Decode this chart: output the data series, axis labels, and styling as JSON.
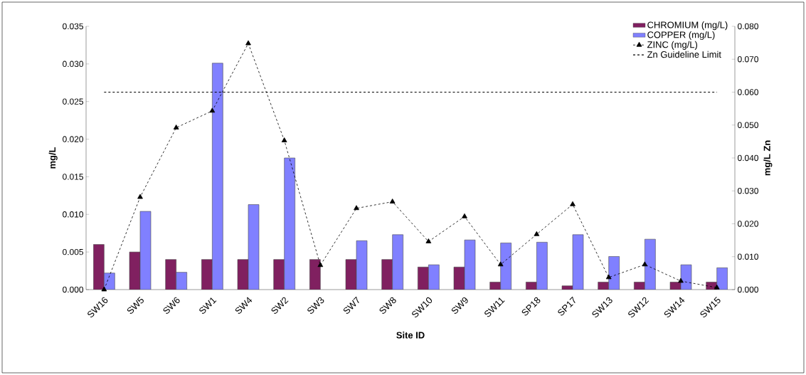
{
  "chart_data": {
    "type": "bar",
    "xlabel": "Site ID",
    "ylabel": "mg/L",
    "y2label": "mg/L Zn",
    "categories": [
      "SW16",
      "SW5",
      "SW6",
      "SW1",
      "SW4",
      "SW2",
      "SW3",
      "SW7",
      "SW8",
      "SW10",
      "SW9",
      "SW11",
      "SP18",
      "SP17",
      "SW13",
      "SW12",
      "SW14",
      "SW15"
    ],
    "series": [
      {
        "name": "CHROMIUM (mg/L)",
        "color": "#802060",
        "values": [
          0.006,
          0.005,
          0.004,
          0.004,
          0.004,
          0.004,
          0.004,
          0.004,
          0.004,
          0.003,
          0.003,
          0.001,
          0.001,
          0.0005,
          0.001,
          0.001,
          0.001,
          0.001
        ]
      },
      {
        "name": "COPPER (mg/L)",
        "color": "#8080ff",
        "values": [
          0.0022,
          0.0104,
          0.0023,
          0.0301,
          0.0113,
          0.0175,
          null,
          0.0065,
          0.0073,
          0.0033,
          0.0066,
          0.0062,
          0.0063,
          0.0073,
          0.0044,
          0.0067,
          0.0033,
          0.0029
        ]
      },
      {
        "name": "ZINC (mg/L)",
        "type": "line",
        "axis": "y2",
        "color": "#000000",
        "marker": "triangle",
        "line_style": "dashed",
        "values": [
          0.0,
          0.0281,
          0.0492,
          0.0543,
          0.0748,
          0.0453,
          0.0074,
          0.0247,
          0.0267,
          0.0146,
          0.0222,
          0.0076,
          0.0168,
          0.0259,
          0.0037,
          0.0076,
          0.0026,
          0.0006
        ]
      }
    ],
    "ylim": [
      0,
      0.035
    ],
    "yticks": [
      {
        "value": 0,
        "label": "0.000"
      },
      {
        "value": 0.005,
        "label": "0.005"
      },
      {
        "value": 0.01,
        "label": "0.010"
      },
      {
        "value": 0.015,
        "label": "0.015"
      },
      {
        "value": 0.02,
        "label": "0.020"
      },
      {
        "value": 0.025,
        "label": "0.025"
      },
      {
        "value": 0.03,
        "label": "0.030"
      },
      {
        "value": 0.035,
        "label": "0.035"
      }
    ],
    "y2lim": [
      0,
      0.08
    ],
    "y2ticks": [
      {
        "value": 0,
        "label": "0.000"
      },
      {
        "value": 0.01,
        "label": "0.010"
      },
      {
        "value": 0.02,
        "label": "0.020"
      },
      {
        "value": 0.03,
        "label": "0.030"
      },
      {
        "value": 0.04,
        "label": "0.040"
      },
      {
        "value": 0.05,
        "label": "0.050"
      },
      {
        "value": 0.06,
        "label": "0.060"
      },
      {
        "value": 0.07,
        "label": "0.070"
      },
      {
        "value": 0.08,
        "label": "0.080"
      }
    ],
    "ref_lines": [
      {
        "axis": "y2",
        "value": 0.06,
        "label": "Zn Guideline Limit",
        "color": "#000000",
        "line_style": "dashed"
      }
    ],
    "legend": "top right",
    "grid": false
  }
}
